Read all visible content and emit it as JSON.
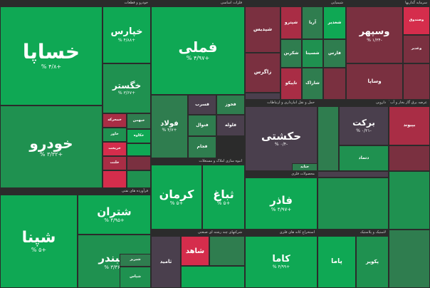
{
  "chart_data": {
    "type": "treemap",
    "sectors": [
      {
        "name": "خودرو و قطعات",
        "tiles": [
          {
            "symbol": "خساپا",
            "change": "+۴/۸ %"
          },
          {
            "symbol": "خودرو",
            "change": "+۳/۳۲ %"
          },
          {
            "symbol": "خپارس",
            "change": "+۴/۸۸ %"
          },
          {
            "symbol": "خگستر",
            "change": "+۳/۶۷ %"
          },
          {
            "symbol": "خمحرکه",
            "change": ""
          },
          {
            "symbol": "خبهمن",
            "change": ""
          },
          {
            "symbol": "خاور",
            "change": ""
          },
          {
            "symbol": "خکاوه",
            "change": ""
          },
          {
            "symbol": "خریخت",
            "change": ""
          },
          {
            "symbol": "خلنت",
            "change": ""
          }
        ]
      },
      {
        "name": "فرآورده های نفتی",
        "tiles": [
          {
            "symbol": "شپنا",
            "change": "+۵ %"
          },
          {
            "symbol": "شتران",
            "change": "+۴/۹۵ %"
          },
          {
            "symbol": "شبندر",
            "change": "+۳/۳۶ %"
          },
          {
            "symbol": "شبریز",
            "change": ""
          },
          {
            "symbol": "شپاس",
            "change": ""
          }
        ]
      },
      {
        "name": "فلزات اساسی",
        "tiles": [
          {
            "symbol": "فملی",
            "change": "+۴/۹۷ %"
          },
          {
            "symbol": "فولاد",
            "change": "+۴/۷ %"
          },
          {
            "symbol": "فخوز",
            "change": ""
          },
          {
            "symbol": "فسرب",
            "change": ""
          },
          {
            "symbol": "فنوال",
            "change": ""
          },
          {
            "symbol": "فلوله",
            "change": ""
          },
          {
            "symbol": "فجام",
            "change": ""
          }
        ]
      },
      {
        "name": "انبوه سازی املاک و مستغلات",
        "tiles": [
          {
            "symbol": "کرمان",
            "change": "+۵ %"
          },
          {
            "symbol": "ثباغ",
            "change": "+۵ %"
          }
        ]
      },
      {
        "name": "شیمیایی",
        "tiles": [
          {
            "symbol": "شپدیس",
            "change": ""
          },
          {
            "symbol": "شپترو",
            "change": ""
          },
          {
            "symbol": "شکربن",
            "change": ""
          },
          {
            "symbol": "شسینا",
            "change": ""
          },
          {
            "symbol": "زاگرس",
            "change": ""
          },
          {
            "symbol": "تاپیکو",
            "change": ""
          },
          {
            "symbol": "شاراک",
            "change": ""
          },
          {
            "symbol": "آریا",
            "change": ""
          },
          {
            "symbol": "شغدیر",
            "change": ""
          },
          {
            "symbol": "فارس",
            "change": ""
          }
        ]
      },
      {
        "name": "سرمایه گذاریها",
        "tiles": [
          {
            "symbol": "وسپهر",
            "change": "-۱/۳۴ %"
          },
          {
            "symbol": "وساپا",
            "change": ""
          },
          {
            "symbol": "وصندوق",
            "change": ""
          },
          {
            "symbol": "وغدیر",
            "change": ""
          }
        ]
      },
      {
        "name": "حمل و نقل انبارداری و ارتباطات",
        "tiles": [
          {
            "symbol": "حکشتی",
            "change": "-۰/۴ %"
          },
          {
            "symbol": "حتاید",
            "change": ""
          }
        ]
      },
      {
        "name": "دارویی",
        "tiles": [
          {
            "symbol": "برکت",
            "change": "-۰/۲۱ %"
          },
          {
            "symbol": "دتماد",
            "change": ""
          }
        ]
      },
      {
        "name": "عرضه برق گاز بخار و آب گرم",
        "tiles": [
          {
            "symbol": "بپیوند",
            "change": ""
          }
        ]
      },
      {
        "name": "محصولات فلزی",
        "tiles": [
          {
            "symbol": "فاذر",
            "change": "+۴/۹۷ %"
          }
        ]
      },
      {
        "name": "استخراج کانه های فلزی",
        "tiles": [
          {
            "symbol": "کاما",
            "change": "+۴/۹۹ %"
          }
        ]
      },
      {
        "name": "شرکتهای چند رشته ای صنعتی",
        "tiles": [
          {
            "symbol": "شاهد",
            "change": ""
          },
          {
            "symbol": "ثامید",
            "change": ""
          }
        ]
      },
      {
        "name": "لاستیک و پلاستیک",
        "tiles": [
          {
            "symbol": "پاما",
            "change": ""
          },
          {
            "symbol": "پکویر",
            "change": ""
          }
        ]
      }
    ]
  }
}
